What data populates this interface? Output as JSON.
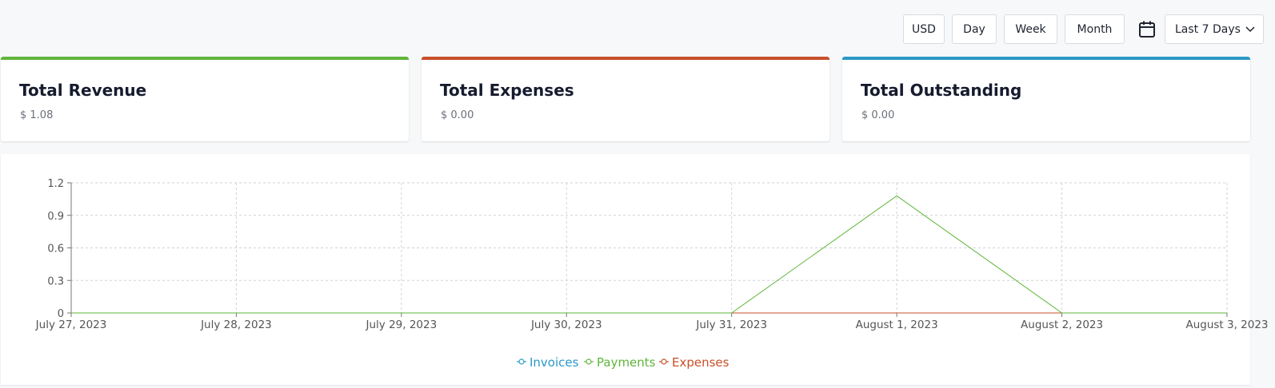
{
  "toolbar": {
    "currency_label": "USD",
    "day_label": "Day",
    "week_label": "Week",
    "month_label": "Month",
    "range_label": "Last 7 Days"
  },
  "cards": [
    {
      "title": "Total Revenue",
      "value": "$ 1.08",
      "color": "#5fb53b"
    },
    {
      "title": "Total Expenses",
      "value": "$ 0.00",
      "color": "#c8502a"
    },
    {
      "title": "Total Outstanding",
      "value": "$ 0.00",
      "color": "#2a99c7"
    }
  ],
  "chart_data": {
    "type": "line",
    "categories": [
      "July 27, 2023",
      "July 28, 2023",
      "July 29, 2023",
      "July 30, 2023",
      "July 31, 2023",
      "August 1, 2023",
      "August 2, 2023",
      "August 3, 2023"
    ],
    "yticks": [
      0,
      0.3,
      0.6,
      0.9,
      1.2
    ],
    "ylim": [
      0,
      1.2
    ],
    "grid": true,
    "legend_position": "bottom-center",
    "series": [
      {
        "name": "Invoices",
        "values": [
          0,
          0,
          0,
          0,
          0,
          0,
          0,
          0
        ],
        "color": "#2a99c7"
      },
      {
        "name": "Payments",
        "values": [
          0,
          0,
          0,
          0,
          0,
          1.08,
          0,
          0
        ],
        "color": "#5fb53b"
      },
      {
        "name": "Expenses",
        "values": [
          0,
          0,
          0,
          0,
          0,
          0,
          0,
          0
        ],
        "color": "#c8502a"
      }
    ]
  }
}
